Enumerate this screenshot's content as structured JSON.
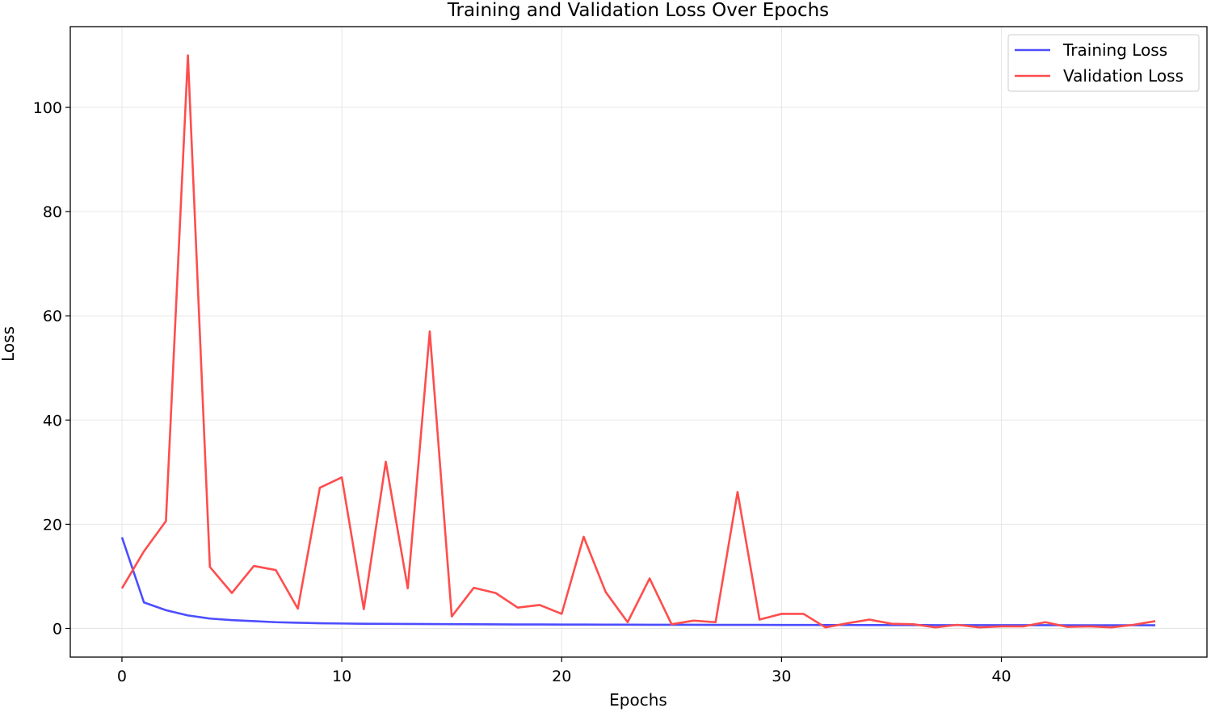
{
  "chart_data": {
    "type": "line",
    "title": "Training and Validation Loss Over Epochs",
    "xlabel": "Epochs",
    "ylabel": "Loss",
    "xlim": [
      -2.35,
      49.35
    ],
    "ylim": [
      -5.5,
      115.5
    ],
    "xticks": [
      0,
      10,
      20,
      30,
      40
    ],
    "yticks": [
      0,
      20,
      40,
      60,
      80,
      100
    ],
    "grid": true,
    "legend_position": "top-right",
    "x": [
      0,
      1,
      2,
      3,
      4,
      5,
      6,
      7,
      8,
      9,
      10,
      11,
      12,
      13,
      14,
      15,
      16,
      17,
      18,
      19,
      20,
      21,
      22,
      23,
      24,
      25,
      26,
      27,
      28,
      29,
      30,
      31,
      32,
      33,
      34,
      35,
      36,
      37,
      38,
      39,
      40,
      41,
      42,
      43,
      44,
      45,
      46,
      47
    ],
    "series": [
      {
        "name": "Training Loss",
        "color": "#4d4dff",
        "values": [
          17.5,
          5.0,
          3.5,
          2.5,
          1.9,
          1.6,
          1.4,
          1.2,
          1.1,
          1.0,
          0.95,
          0.9,
          0.88,
          0.86,
          0.84,
          0.82,
          0.8,
          0.78,
          0.77,
          0.76,
          0.75,
          0.74,
          0.73,
          0.72,
          0.71,
          0.7,
          0.7,
          0.69,
          0.68,
          0.68,
          0.67,
          0.67,
          0.66,
          0.66,
          0.65,
          0.65,
          0.65,
          0.64,
          0.64,
          0.64,
          0.63,
          0.63,
          0.63,
          0.62,
          0.62,
          0.62,
          0.62,
          0.61
        ]
      },
      {
        "name": "Validation Loss",
        "color": "#ff4d4d",
        "values": [
          7.7,
          14.8,
          20.6,
          110.0,
          11.8,
          6.8,
          12.0,
          11.2,
          3.8,
          27.0,
          29.0,
          3.7,
          32.0,
          7.7,
          57.0,
          2.3,
          7.8,
          6.8,
          4.0,
          4.5,
          2.8,
          17.6,
          7.0,
          1.2,
          9.6,
          0.8,
          1.5,
          1.2,
          26.2,
          1.7,
          2.8,
          2.8,
          0.2,
          1.0,
          1.7,
          0.9,
          0.8,
          0.2,
          0.7,
          0.2,
          0.4,
          0.4,
          1.2,
          0.3,
          0.4,
          0.2,
          0.7,
          1.4
        ]
      }
    ]
  }
}
